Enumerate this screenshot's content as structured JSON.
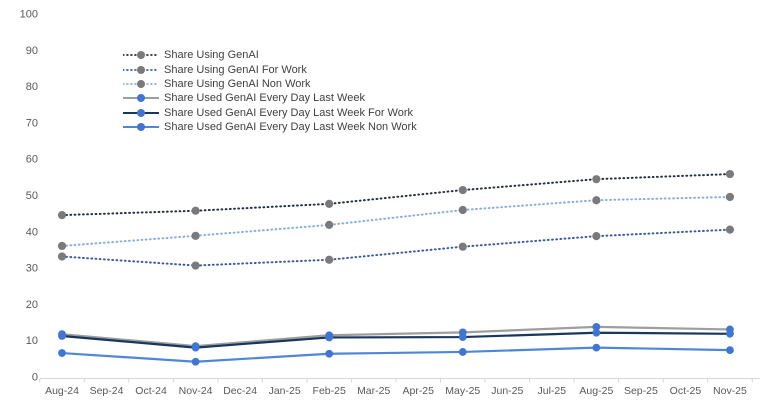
{
  "chart_data": {
    "type": "line",
    "title": "",
    "categories": [
      "Aug-24",
      "Sep-24",
      "Oct-24",
      "Nov-24",
      "Dec-24",
      "Jan-25",
      "Feb-25",
      "Mar-25",
      "Apr-25",
      "May-25",
      "Jun-25",
      "Jul-25",
      "Aug-25",
      "Sep-25",
      "Oct-25",
      "Nov-25"
    ],
    "data_categories": [
      "Aug-24",
      "Nov-24",
      "Feb-25",
      "May-25",
      "Aug-25",
      "Nov-25"
    ],
    "x_data_indices": [
      0,
      3,
      6,
      9,
      12,
      15
    ],
    "y_axis": {
      "min": 0,
      "max": 100,
      "tick_step": 10,
      "ticks": [
        0,
        10,
        20,
        30,
        40,
        50,
        60,
        70,
        80,
        90,
        100
      ]
    },
    "grid": "off",
    "legend_position": "upper-left-inside",
    "series": [
      {
        "name": "Share Using GenAI",
        "style": "dotted",
        "line_color": "#262d3f",
        "marker_color": "#7a7a7a",
        "values": [
          44.6,
          45.8,
          47.7,
          51.5,
          54.5,
          55.9
        ]
      },
      {
        "name": "Share Using GenAI For Work",
        "style": "dotted",
        "line_color": "#3a5a9f",
        "marker_color": "#7a7a7a",
        "values": [
          33.2,
          30.7,
          32.3,
          35.9,
          38.8,
          40.6
        ]
      },
      {
        "name": "Share Using GenAI Non Work",
        "style": "dotted",
        "line_color": "#86aede",
        "marker_color": "#7a7a7a",
        "values": [
          36.1,
          38.9,
          41.9,
          46.0,
          48.7,
          49.6
        ]
      },
      {
        "name": "Share Used GenAI Every Day Last Week",
        "style": "solid",
        "line_color": "#9e9e9e",
        "marker_color": "#3f76d2",
        "values": [
          11.8,
          8.5,
          11.5,
          12.3,
          13.8,
          13.1
        ]
      },
      {
        "name": "Share Used GenAI Every Day Last Week For Work",
        "style": "solid",
        "line_color": "#17375e",
        "marker_color": "#3f76d2",
        "values": [
          11.3,
          8.1,
          10.9,
          11.0,
          12.2,
          11.9
        ]
      },
      {
        "name": "Share Used GenAI Every Day Last Week Non Work",
        "style": "solid",
        "line_color": "#4e87d6",
        "marker_color": "#3f76d2",
        "values": [
          6.6,
          4.2,
          6.4,
          6.9,
          8.1,
          7.4
        ]
      }
    ],
    "colors": {
      "axis_text": "#595959",
      "legend_text": "#3f3f3f",
      "axis_line": "#d6d6d6"
    }
  }
}
